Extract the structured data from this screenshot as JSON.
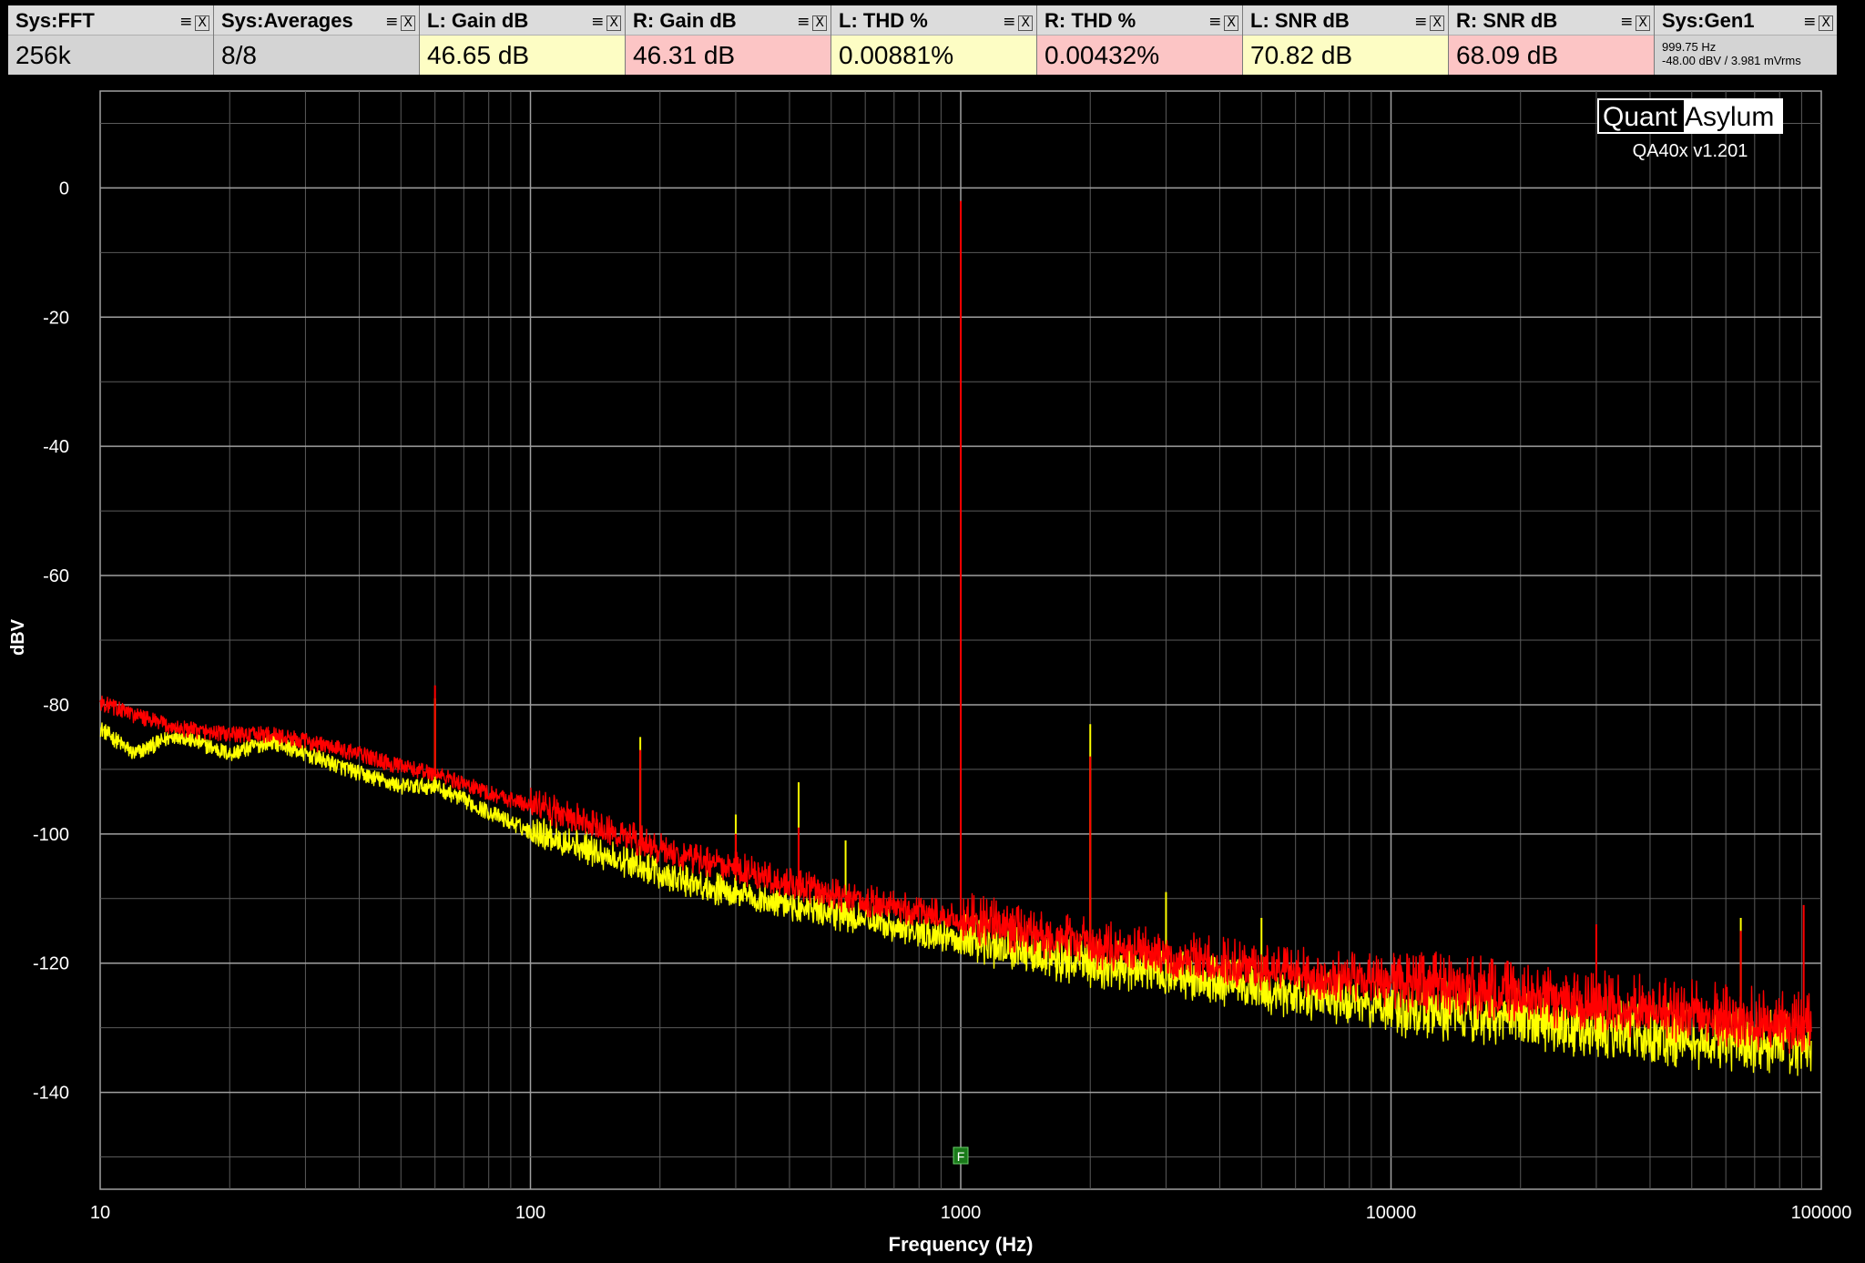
{
  "widgets": [
    {
      "title": "Sys:FFT",
      "value": "256k",
      "bg": "#d4d4d4"
    },
    {
      "title": "Sys:Averages",
      "value": "8/8",
      "bg": "#d4d4d4"
    },
    {
      "title": "L: Gain dB",
      "value": "46.65 dB",
      "bg": "#fdfdc4"
    },
    {
      "title": "R: Gain dB",
      "value": "46.31 dB",
      "bg": "#fcc5c5"
    },
    {
      "title": "L: THD %",
      "value": "0.00881%",
      "bg": "#fdfdc4"
    },
    {
      "title": "R: THD %",
      "value": "0.00432%",
      "bg": "#fcc5c5"
    },
    {
      "title": "L: SNR dB",
      "value": "70.82 dB",
      "bg": "#fdfdc4"
    },
    {
      "title": "R: SNR dB",
      "value": "68.09 dB",
      "bg": "#fcc5c5"
    },
    {
      "title": "Sys:Gen1",
      "line1": "999.75 Hz",
      "line2": "-48.00 dBV  / 3.981 mVrms",
      "bg": "#d4d4d4"
    }
  ],
  "logo": {
    "part1": "Quant",
    "part2": "Asylum",
    "version": "QA40x v1.201"
  },
  "marker_label": "F",
  "chart_data": {
    "type": "line",
    "xlabel": "Frequency (Hz)",
    "ylabel": "dBV",
    "x_scale": "log",
    "xlim": [
      10,
      100000
    ],
    "ylim": [
      -155,
      15
    ],
    "x_ticks": [
      10,
      100,
      1000,
      10000,
      100000
    ],
    "x_tick_labels": [
      "10",
      "100",
      "1000",
      "10000",
      "100000"
    ],
    "y_ticks": [
      0,
      -20,
      -40,
      -60,
      -80,
      -100,
      -120,
      -140
    ],
    "y_tick_labels": [
      "0",
      "-20",
      "-40",
      "-60",
      "-80",
      "-100",
      "-120",
      "-140"
    ],
    "grid": true,
    "colors": {
      "left": "#ffff00",
      "right": "#ff0000",
      "grid": "#5a5a5a",
      "major_grid": "#a0a0a0"
    },
    "noise_floor": {
      "left": [
        [
          10,
          -84
        ],
        [
          12,
          -88
        ],
        [
          15,
          -85
        ],
        [
          20,
          -88
        ],
        [
          25,
          -86
        ],
        [
          30,
          -88
        ],
        [
          40,
          -91
        ],
        [
          50,
          -93
        ],
        [
          60,
          -93
        ],
        [
          80,
          -97
        ],
        [
          100,
          -100
        ],
        [
          150,
          -104
        ],
        [
          200,
          -107
        ],
        [
          300,
          -110
        ],
        [
          500,
          -113
        ],
        [
          1000,
          -117
        ],
        [
          2000,
          -121
        ],
        [
          5000,
          -125
        ],
        [
          10000,
          -128
        ],
        [
          20000,
          -130
        ],
        [
          50000,
          -133
        ],
        [
          95000,
          -134
        ]
      ],
      "right": [
        [
          10,
          -80
        ],
        [
          12,
          -82
        ],
        [
          15,
          -84
        ],
        [
          20,
          -85
        ],
        [
          25,
          -85
        ],
        [
          30,
          -86
        ],
        [
          40,
          -88
        ],
        [
          50,
          -90
        ],
        [
          60,
          -91
        ],
        [
          80,
          -94
        ],
        [
          100,
          -96
        ],
        [
          150,
          -100
        ],
        [
          200,
          -103
        ],
        [
          300,
          -106
        ],
        [
          500,
          -110
        ],
        [
          1000,
          -114
        ],
        [
          2000,
          -118
        ],
        [
          5000,
          -122
        ],
        [
          10000,
          -124
        ],
        [
          20000,
          -126
        ],
        [
          50000,
          -129
        ],
        [
          95000,
          -131
        ]
      ]
    },
    "peaks": {
      "left": [
        [
          60,
          -79
        ],
        [
          180,
          -85
        ],
        [
          300,
          -97
        ],
        [
          420,
          -92
        ],
        [
          540,
          -101
        ],
        [
          1000,
          -8
        ],
        [
          2000,
          -83
        ],
        [
          3000,
          -109
        ],
        [
          5000,
          -113
        ],
        [
          65000,
          -113
        ]
      ],
      "right": [
        [
          60,
          -77
        ],
        [
          180,
          -87
        ],
        [
          300,
          -100
        ],
        [
          420,
          -99
        ],
        [
          1000,
          -2
        ],
        [
          2000,
          -88
        ],
        [
          30000,
          -114
        ],
        [
          91000,
          -111
        ],
        [
          65000,
          -115
        ]
      ]
    }
  }
}
